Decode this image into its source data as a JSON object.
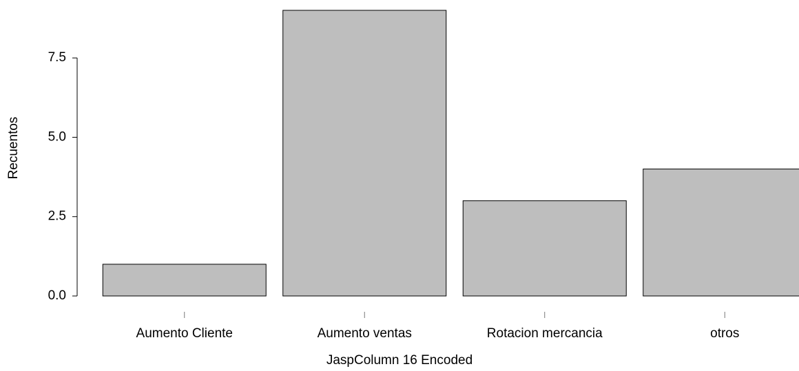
{
  "chart_data": {
    "type": "bar",
    "x_label": "JaspColumn  16  Encoded",
    "y_label": "Recuentos",
    "categories": [
      "Aumento Cliente",
      "Aumento ventas",
      "Rotacion mercancia",
      "otros"
    ],
    "values": [
      1,
      9,
      3,
      4
    ],
    "color": "#bebebe",
    "ylim": [
      0,
      9
    ],
    "yticks": [
      {
        "value": 0,
        "label": "0.0"
      },
      2.5,
      {
        "value": 5,
        "label": "5.0"
      },
      7.5
    ]
  }
}
